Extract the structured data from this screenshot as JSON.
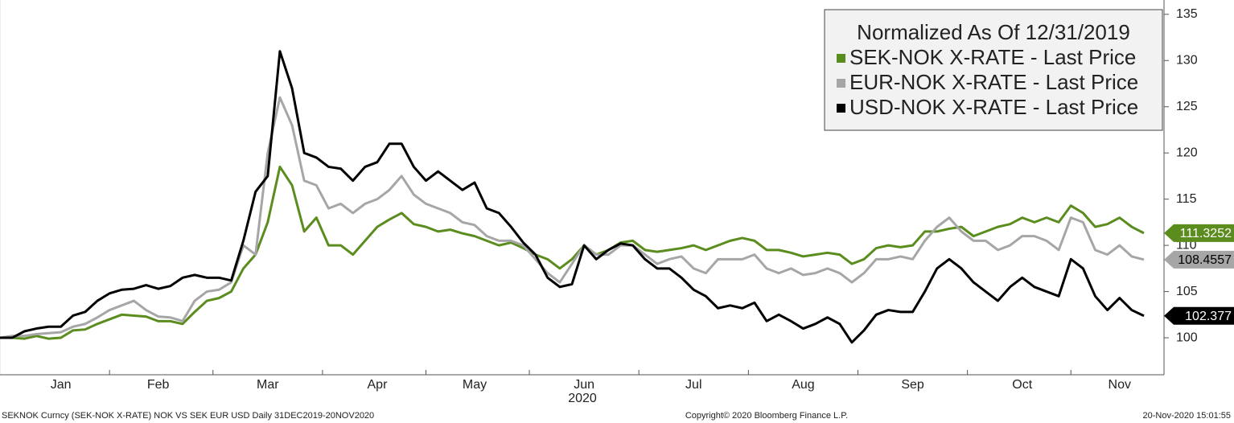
{
  "chart_data": {
    "type": "line",
    "legend_title": "Normalized As Of 12/31/2019",
    "xlabel": "2020",
    "source": "SEKNOK Curncy (SEK-NOK X-RATE) NOK VS SEK EUR USD  Daily 31DEC2019-20NOV2020",
    "copyright": "Copyright© 2020 Bloomberg Finance L.P.",
    "timestamp": "20-Nov-2020 15:01:55",
    "legend": "upper right",
    "categories": [
      null,
      null,
      null,
      null,
      null,
      "Jan",
      null,
      null,
      null,
      null,
      null,
      null,
      null,
      "Feb",
      null,
      null,
      null,
      null,
      null,
      null,
      null,
      null,
      "Mar",
      null,
      null,
      null,
      null,
      null,
      null,
      null,
      null,
      "Apr",
      null,
      null,
      null,
      null,
      null,
      null,
      null,
      "May",
      null,
      null,
      null,
      null,
      null,
      null,
      null,
      null,
      "Jun",
      null,
      null,
      null,
      null,
      null,
      null,
      null,
      null,
      "Jul",
      null,
      null,
      null,
      null,
      null,
      null,
      null,
      null,
      "Aug",
      null,
      null,
      null,
      null,
      null,
      null,
      null,
      null,
      "Sep",
      null,
      null,
      null,
      null,
      null,
      null,
      null,
      null,
      "Oct",
      null,
      null,
      null,
      null,
      null,
      null,
      null,
      "Nov",
      null,
      null
    ],
    "ylim": [
      96,
      136.55
    ],
    "yticks": [
      100,
      105,
      110,
      115,
      120,
      125,
      130,
      135
    ],
    "series": [
      {
        "name": "SEK-NOK X-RATE - Last Price",
        "color": "#5b8c1e",
        "tag_text": "#ffffff",
        "values": [
          100,
          100,
          99.9,
          100.2,
          99.9,
          100,
          100.8,
          100.9,
          101.5,
          102,
          102.5,
          102.4,
          102.3,
          101.8,
          101.8,
          101.5,
          102.8,
          104,
          104.3,
          105,
          107.5,
          109,
          112.5,
          118.5,
          116.5,
          111.5,
          113,
          110,
          110,
          109,
          110.5,
          112,
          112.8,
          113.5,
          112.3,
          112,
          111.5,
          111.7,
          111.3,
          111,
          110.5,
          110,
          110.3,
          109.7,
          109,
          108.5,
          107.5,
          108.5,
          110,
          109,
          109.5,
          110.3,
          110.5,
          109.5,
          109.3,
          109.5,
          109.7,
          110,
          109.5,
          110,
          110.5,
          110.8,
          110.5,
          109.5,
          109.5,
          109.2,
          108.8,
          109,
          109.2,
          109,
          108,
          108.5,
          109.7,
          110,
          109.8,
          110,
          111.5,
          111.5,
          111.8,
          112,
          111,
          111.5,
          112,
          112.3,
          113,
          112.5,
          113,
          112.5,
          114.3,
          113.5,
          112,
          112.3,
          113,
          112,
          111.3252
        ]
      },
      {
        "name": "EUR-NOK X-RATE - Last Price",
        "color": "#a6a6a6",
        "tag_text": "#000000",
        "values": [
          100,
          100.2,
          100.2,
          100.4,
          100.5,
          100.6,
          101.2,
          101.5,
          102.2,
          103,
          103.5,
          104,
          103,
          102.3,
          102.2,
          101.8,
          104,
          105,
          105.2,
          106,
          110,
          109,
          120,
          126,
          123,
          117,
          116.5,
          114,
          114.5,
          113.5,
          114.5,
          115,
          116,
          117.5,
          115.5,
          114.5,
          114,
          113.5,
          112.5,
          112.2,
          111,
          110.5,
          110.5,
          110,
          108.5,
          107,
          106,
          108,
          110,
          109,
          109,
          110,
          110,
          109,
          108,
          108.5,
          108.8,
          107.5,
          107,
          108.5,
          108.5,
          108.5,
          109,
          107.5,
          107,
          107.5,
          106.8,
          107,
          107.5,
          107,
          106,
          107,
          108.5,
          108.5,
          108.8,
          108.5,
          110.5,
          112,
          113,
          111.5,
          110.5,
          110.5,
          109.5,
          110,
          111,
          111,
          110.5,
          109.5,
          113,
          112.5,
          109.5,
          109,
          110,
          108.8,
          108.4557
        ]
      },
      {
        "name": "USD-NOK X-RATE - Last Price",
        "color": "#000000",
        "tag_text": "#ffffff",
        "values": [
          100,
          100,
          100.7,
          101,
          101.2,
          101.2,
          102.4,
          102.8,
          104,
          104.8,
          105.2,
          105.3,
          105.7,
          105.3,
          105.6,
          106.5,
          106.8,
          106.5,
          106.5,
          106.2,
          110.5,
          115.8,
          117.5,
          131,
          127,
          120,
          119.5,
          118.5,
          118.3,
          117,
          118.5,
          119,
          121,
          121,
          118.5,
          117,
          118,
          117,
          116,
          116.8,
          114,
          113.5,
          112,
          110.3,
          109,
          106.5,
          105.5,
          105.8,
          110,
          108.5,
          109.5,
          110.2,
          110,
          108.5,
          107.5,
          107.5,
          106.5,
          105.2,
          104.5,
          103.2,
          103.5,
          103.2,
          103.8,
          101.8,
          102.5,
          101.8,
          101,
          101.5,
          102.2,
          101.5,
          99.5,
          100.8,
          102.5,
          103,
          102.8,
          102.8,
          105,
          107.5,
          108.5,
          107.5,
          106,
          105,
          104,
          105.5,
          106.5,
          105.5,
          105,
          104.5,
          108.5,
          107.5,
          104.5,
          103,
          104.3,
          103,
          102.377
        ]
      }
    ]
  }
}
